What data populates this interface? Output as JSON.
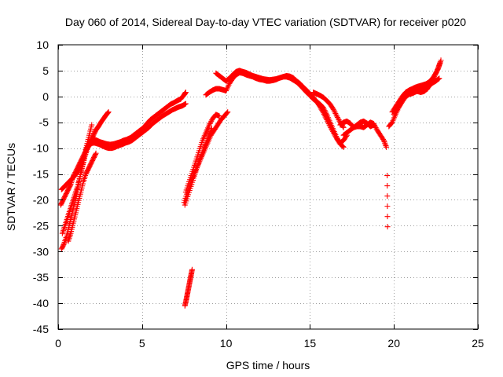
{
  "chart_data": {
    "type": "scatter",
    "title": "Day 060 of 2014, Sidereal Day-to-day VTEC variation (SDTVAR) for receiver p020",
    "xlabel": "GPS time / hours",
    "ylabel": "SDTVAR / TECUs",
    "xlim": [
      0,
      25
    ],
    "ylim": [
      -45,
      10
    ],
    "xticks": [
      0,
      5,
      10,
      15,
      20,
      25
    ],
    "yticks": [
      -45,
      -40,
      -35,
      -30,
      -25,
      -20,
      -15,
      -10,
      -5,
      0,
      5,
      10
    ],
    "grid": true,
    "marker": "plus",
    "color": "#ff0000",
    "series": [
      {
        "x": [
          0.2,
          0.35,
          0.5,
          0.65,
          0.8,
          0.95,
          1.1,
          1.25,
          1.4,
          1.55,
          1.7,
          1.85,
          2.0,
          2.15,
          2.3,
          2.5,
          2.7,
          2.9,
          3.1,
          3.3,
          3.5,
          3.7,
          3.9,
          4.1,
          4.3,
          4.5,
          4.7,
          4.9,
          5.1,
          5.3,
          5.5,
          5.7,
          5.9,
          6.1,
          6.3,
          6.5,
          6.7,
          6.9,
          7.1,
          7.3,
          7.5,
          7.6
        ],
        "y": [
          -29.5,
          -28.5,
          -27,
          -25,
          -23,
          -21,
          -19,
          -16.5,
          -14,
          -12,
          -10,
          -9,
          -8.5,
          -8.3,
          -8.5,
          -8.8,
          -9.0,
          -9.2,
          -9.3,
          -9.2,
          -9.0,
          -8.8,
          -8.5,
          -8.3,
          -8.0,
          -7.5,
          -7.0,
          -6.5,
          -6.0,
          -5.2,
          -4.5,
          -4.0,
          -3.5,
          -3.0,
          -2.5,
          -2.0,
          -1.5,
          -1.2,
          -0.8,
          -0.5,
          0.3,
          0.8
        ]
      },
      {
        "x": [
          0.25,
          0.4,
          0.55,
          0.7,
          0.85,
          1.0,
          1.15,
          1.3,
          1.45,
          1.6,
          1.75,
          1.9,
          2.05,
          2.2,
          2.4,
          2.6,
          2.8,
          3.0,
          3.2,
          3.4,
          3.6,
          3.8,
          4.0,
          4.2,
          4.4,
          4.6,
          4.8,
          5.0,
          5.2,
          5.4,
          5.6,
          5.8,
          6.0,
          6.2,
          6.4,
          6.6,
          6.8,
          7.0,
          7.2,
          7.4,
          7.6
        ],
        "y": [
          -26.5,
          -25,
          -23.5,
          -22,
          -20.5,
          -19,
          -17.5,
          -15.5,
          -13.5,
          -11.5,
          -10,
          -9.2,
          -9,
          -9,
          -9.2,
          -9.5,
          -9.8,
          -10,
          -10,
          -9.8,
          -9.5,
          -9.3,
          -9.0,
          -8.8,
          -8.5,
          -8.0,
          -7.5,
          -7.0,
          -6.5,
          -6.0,
          -5.3,
          -4.8,
          -4.3,
          -3.8,
          -3.4,
          -3.0,
          -2.6,
          -2.3,
          -2.0,
          -1.8,
          -1.4
        ]
      },
      {
        "x": [
          0.15,
          0.3,
          0.45,
          0.6,
          0.75,
          0.9,
          1.05,
          1.2,
          1.35,
          1.5,
          1.65,
          1.8,
          1.95,
          2.1,
          2.25,
          2.4,
          2.55,
          2.7,
          2.85,
          3.0
        ],
        "y": [
          -21,
          -20,
          -19,
          -18,
          -17,
          -15.5,
          -14.5,
          -13.5,
          -12.5,
          -11.5,
          -10.5,
          -9.5,
          -8.5,
          -7.5,
          -6.5,
          -5.8,
          -5.0,
          -4.3,
          -3.6,
          -3.0
        ]
      },
      {
        "x": [
          0.2,
          0.35,
          0.5,
          0.65,
          0.8,
          0.95,
          1.1,
          1.25,
          1.4,
          1.55,
          1.7,
          1.85,
          2.0
        ],
        "y": [
          -18,
          -17.5,
          -17,
          -16.5,
          -16,
          -15.5,
          -14.8,
          -14,
          -13,
          -11.5,
          -9.5,
          -7.5,
          -5.5
        ]
      },
      {
        "x": [
          0.6,
          0.75,
          0.9,
          1.05,
          1.2,
          1.35,
          1.5,
          1.65,
          1.8,
          1.95,
          2.1,
          2.25
        ],
        "y": [
          -28,
          -26.5,
          -24.5,
          -22.5,
          -20.5,
          -18.5,
          -16.5,
          -15,
          -14,
          -13,
          -12,
          -11
        ]
      },
      {
        "x": [
          7.55,
          7.62,
          7.68,
          7.74,
          7.8,
          7.86,
          7.92,
          7.98
        ],
        "y": [
          -40.5,
          -39.5,
          -38.5,
          -37.5,
          -36.5,
          -35.5,
          -34.5,
          -33.5
        ]
      },
      {
        "x": [
          7.5,
          7.7,
          7.9,
          8.1,
          8.3,
          8.5,
          8.7,
          8.9,
          9.1,
          9.3,
          9.5,
          9.7,
          9.9,
          10.1
        ],
        "y": [
          -20.5,
          -18.5,
          -16.5,
          -15.0,
          -13.5,
          -12.0,
          -10.5,
          -9.0,
          -7.5,
          -6.5,
          -5.5,
          -4.5,
          -3.8,
          -3.0
        ]
      },
      {
        "x": [
          7.6,
          7.8,
          8.0,
          8.2,
          8.4,
          8.6,
          8.8,
          9.0,
          9.2,
          9.4,
          9.6
        ],
        "y": [
          -18.5,
          -16.5,
          -14.5,
          -12.5,
          -10.5,
          -8.5,
          -7.0,
          -5.5,
          -4.3,
          -3.5,
          -3.8
        ]
      },
      {
        "x": [
          7.55,
          7.75,
          7.95,
          8.15,
          8.35,
          8.55,
          8.75,
          8.95,
          9.15
        ],
        "y": [
          -21.0,
          -19.0,
          -17.0,
          -15.0,
          -13.0,
          -11.2,
          -9.5,
          -7.8,
          -6.2
        ]
      },
      {
        "x": [
          8.8,
          9.0,
          9.2,
          9.4,
          9.6,
          9.8,
          10.0,
          10.2,
          10.4,
          10.6,
          10.8,
          11.0,
          11.2,
          11.4,
          11.6,
          11.8,
          12.0,
          12.2,
          12.4,
          12.6,
          12.8,
          13.0,
          13.2,
          13.4,
          13.6,
          13.8,
          14.0,
          14.2,
          14.4,
          14.6,
          14.8,
          15.0,
          15.2,
          15.4,
          15.6,
          15.8,
          16.0,
          16.2,
          16.4,
          16.6,
          16.8,
          17.0,
          17.2
        ],
        "y": [
          0.3,
          0.8,
          1.2,
          1.5,
          1.5,
          1.3,
          1.1,
          2.5,
          3.5,
          4.2,
          4.6,
          4.5,
          4.2,
          4.0,
          3.8,
          3.5,
          3.3,
          3.2,
          3.0,
          3.0,
          3.1,
          3.3,
          3.6,
          3.8,
          3.8,
          3.6,
          3.2,
          2.8,
          2.2,
          1.5,
          0.8,
          0.2,
          -0.5,
          -1.0,
          -1.5,
          -2.2,
          -3.5,
          -5.0,
          -6.5,
          -8.0,
          -9.0,
          -8.5,
          -7.5
        ]
      },
      {
        "x": [
          9.4,
          9.6,
          9.8,
          10.0,
          10.2,
          10.4,
          10.6,
          10.8,
          11.0,
          11.2,
          11.4,
          11.6,
          11.8,
          12.0,
          12.2,
          12.4,
          12.6,
          12.8,
          13.0,
          13.2,
          13.4,
          13.6,
          13.8,
          14.0,
          14.2,
          14.4,
          14.6,
          14.8,
          15.0,
          15.2,
          15.4,
          15.6,
          15.8,
          16.0,
          16.2,
          16.4,
          16.6,
          16.8,
          17.0
        ],
        "y": [
          4.5,
          4.0,
          3.5,
          3.0,
          3.5,
          4.2,
          4.8,
          5.0,
          4.8,
          4.6,
          4.3,
          4.0,
          3.8,
          3.6,
          3.4,
          3.3,
          3.2,
          3.3,
          3.4,
          3.6,
          3.8,
          4.0,
          3.9,
          3.6,
          3.0,
          2.5,
          1.8,
          1.2,
          0.5,
          -0.2,
          -1.0,
          -2.0,
          -3.2,
          -4.5,
          -5.8,
          -7.0,
          -8.2,
          -9.2,
          -9.8
        ]
      },
      {
        "x": [
          15.2,
          15.4,
          15.6,
          15.8,
          16.0,
          16.2,
          16.4,
          16.6,
          16.8,
          17.0
        ],
        "y": [
          0.8,
          0.5,
          0.2,
          -0.2,
          -0.8,
          -1.5,
          -2.5,
          -3.8,
          -5.0,
          -6.0
        ]
      },
      {
        "x": [
          17.0,
          17.2,
          17.4,
          17.6,
          17.8,
          18.0,
          18.2,
          18.4,
          18.6,
          18.8,
          19.0,
          19.2,
          19.4,
          19.55
        ],
        "y": [
          -7.5,
          -7.0,
          -6.5,
          -6.0,
          -5.8,
          -5.8,
          -6.0,
          -5.5,
          -5.0,
          -5.3,
          -6.5,
          -7.5,
          -8.5,
          -9.8
        ]
      },
      {
        "x": [
          16.8,
          17.0,
          17.2,
          17.4,
          17.6,
          17.8,
          18.0,
          18.2,
          18.4,
          18.6,
          18.8
        ],
        "y": [
          -5.5,
          -5.0,
          -4.8,
          -5.2,
          -6.0,
          -5.5,
          -5.0,
          -4.8,
          -5.2,
          -5.8,
          -5.5
        ]
      },
      {
        "x": [
          19.6,
          19.62
        ],
        "y": [
          -15.3,
          -25.2
        ]
      },
      {
        "x": [
          19.7,
          19.9,
          20.1,
          20.3,
          20.5,
          20.7,
          20.9,
          21.1,
          21.3,
          21.5,
          21.7,
          21.9,
          22.1,
          22.3,
          22.5,
          22.7
        ],
        "y": [
          -5.8,
          -5.0,
          -3.5,
          -2.0,
          -0.8,
          0.0,
          0.4,
          0.6,
          0.9,
          1.2,
          1.6,
          1.8,
          2.2,
          2.6,
          3.0,
          3.5
        ]
      },
      {
        "x": [
          19.9,
          20.1,
          20.3,
          20.5,
          20.7,
          20.9,
          21.1,
          21.3,
          21.5,
          21.7,
          21.9,
          22.1,
          22.3,
          22.5,
          22.65,
          22.8
        ],
        "y": [
          -3.0,
          -2.0,
          -1.0,
          0.0,
          0.8,
          1.2,
          1.5,
          1.8,
          2.0,
          2.2,
          2.4,
          2.8,
          3.5,
          4.5,
          5.5,
          7.0
        ]
      },
      {
        "x": [
          20.0,
          20.2,
          20.4,
          20.6,
          20.8,
          21.0,
          21.2,
          21.4,
          21.6,
          21.8,
          22.0,
          22.2,
          22.4,
          22.6,
          22.75
        ],
        "y": [
          -3.5,
          -2.5,
          -1.5,
          -0.5,
          0.3,
          0.9,
          1.2,
          1.0,
          0.8,
          1.0,
          1.5,
          2.5,
          3.8,
          5.2,
          6.5
        ]
      }
    ]
  }
}
